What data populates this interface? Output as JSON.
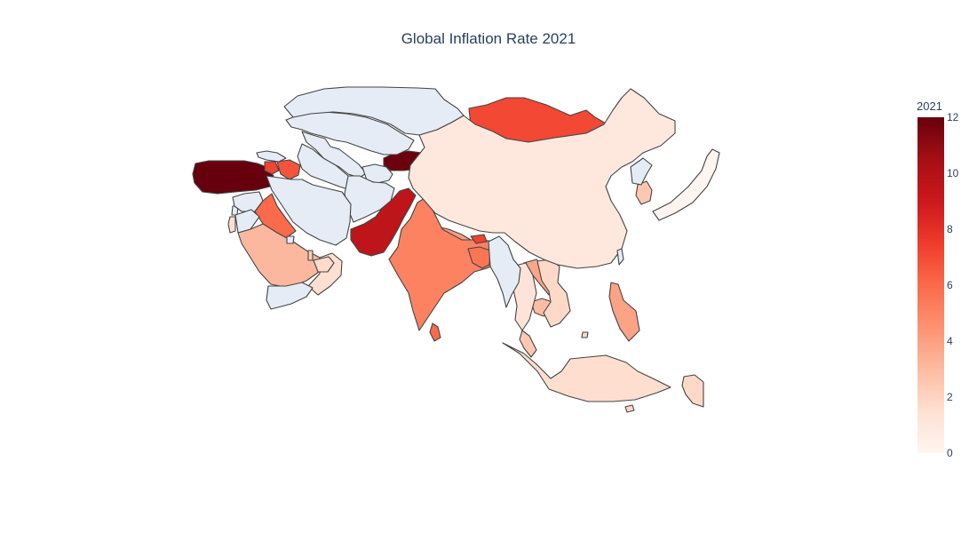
{
  "title": "Global Inflation Rate 2021",
  "colorbar": {
    "title": "2021",
    "range": [
      0,
      12
    ],
    "ticks": [
      "0",
      "2",
      "4",
      "6",
      "8",
      "10",
      "12"
    ],
    "colorscale": [
      "#fff5f0",
      "#fee0d2",
      "#fcbba1",
      "#fc9272",
      "#fb6a4a",
      "#ef3b2c",
      "#cb181d",
      "#a50f15",
      "#67000d"
    ]
  },
  "no_data_color": "#e5ecf6",
  "chart_data": {
    "type": "choropleth",
    "scope": "asia",
    "projection": "mercator",
    "z_range": [
      0,
      12
    ],
    "regions": [
      {
        "name": "Turkey",
        "value": 19.6
      },
      {
        "name": "Kyrgyzstan",
        "value": 11.9
      },
      {
        "name": "Pakistan",
        "value": 9.5
      },
      {
        "name": "Mongolia",
        "value": 7.1
      },
      {
        "name": "Sri Lanka",
        "value": 6.0
      },
      {
        "name": "Iraq",
        "value": 6.0
      },
      {
        "name": "Azerbaijan",
        "value": 6.7
      },
      {
        "name": "Armenia",
        "value": 7.2
      },
      {
        "name": "Nepal",
        "value": 4.1
      },
      {
        "name": "India",
        "value": 5.1
      },
      {
        "name": "Bangladesh",
        "value": 5.6
      },
      {
        "name": "Bhutan",
        "value": 7.3
      },
      {
        "name": "Philippines",
        "value": 3.9
      },
      {
        "name": "Laos",
        "value": 3.8
      },
      {
        "name": "Saudi Arabia",
        "value": 3.1
      },
      {
        "name": "South Korea",
        "value": 2.5
      },
      {
        "name": "Cambodia",
        "value": 2.9
      },
      {
        "name": "Malaysia",
        "value": 2.5
      },
      {
        "name": "Israel",
        "value": 1.5
      },
      {
        "name": "Thailand",
        "value": 1.2
      },
      {
        "name": "Vietnam",
        "value": 1.8
      },
      {
        "name": "Indonesia",
        "value": 1.6
      },
      {
        "name": "Papua New Guinea",
        "value": 1.8
      },
      {
        "name": "China",
        "value": 0.9
      },
      {
        "name": "Oman",
        "value": 1.5
      },
      {
        "name": "United Arab Emirates",
        "value": 1.7
      },
      {
        "name": "Qatar",
        "value": 2.3
      },
      {
        "name": "Japan",
        "value": -0.2
      },
      {
        "name": "Brunei",
        "value": 1.7
      },
      {
        "name": "Timor-Leste",
        "value": 1.9
      },
      {
        "name": "Lebanon",
        "value": null
      },
      {
        "name": "Kazakhstan",
        "value": null
      },
      {
        "name": "Russia",
        "value": null
      },
      {
        "name": "Georgia",
        "value": null
      },
      {
        "name": "Uzbekistan",
        "value": null
      },
      {
        "name": "Turkmenistan",
        "value": null
      },
      {
        "name": "Tajikistan",
        "value": null
      },
      {
        "name": "Afghanistan",
        "value": null
      },
      {
        "name": "Iran",
        "value": null
      },
      {
        "name": "Syria",
        "value": null
      },
      {
        "name": "Jordan",
        "value": null
      },
      {
        "name": "Yemen",
        "value": null
      },
      {
        "name": "Kuwait",
        "value": null
      },
      {
        "name": "Myanmar",
        "value": null
      },
      {
        "name": "North Korea",
        "value": null
      },
      {
        "name": "Taiwan",
        "value": null
      }
    ]
  }
}
